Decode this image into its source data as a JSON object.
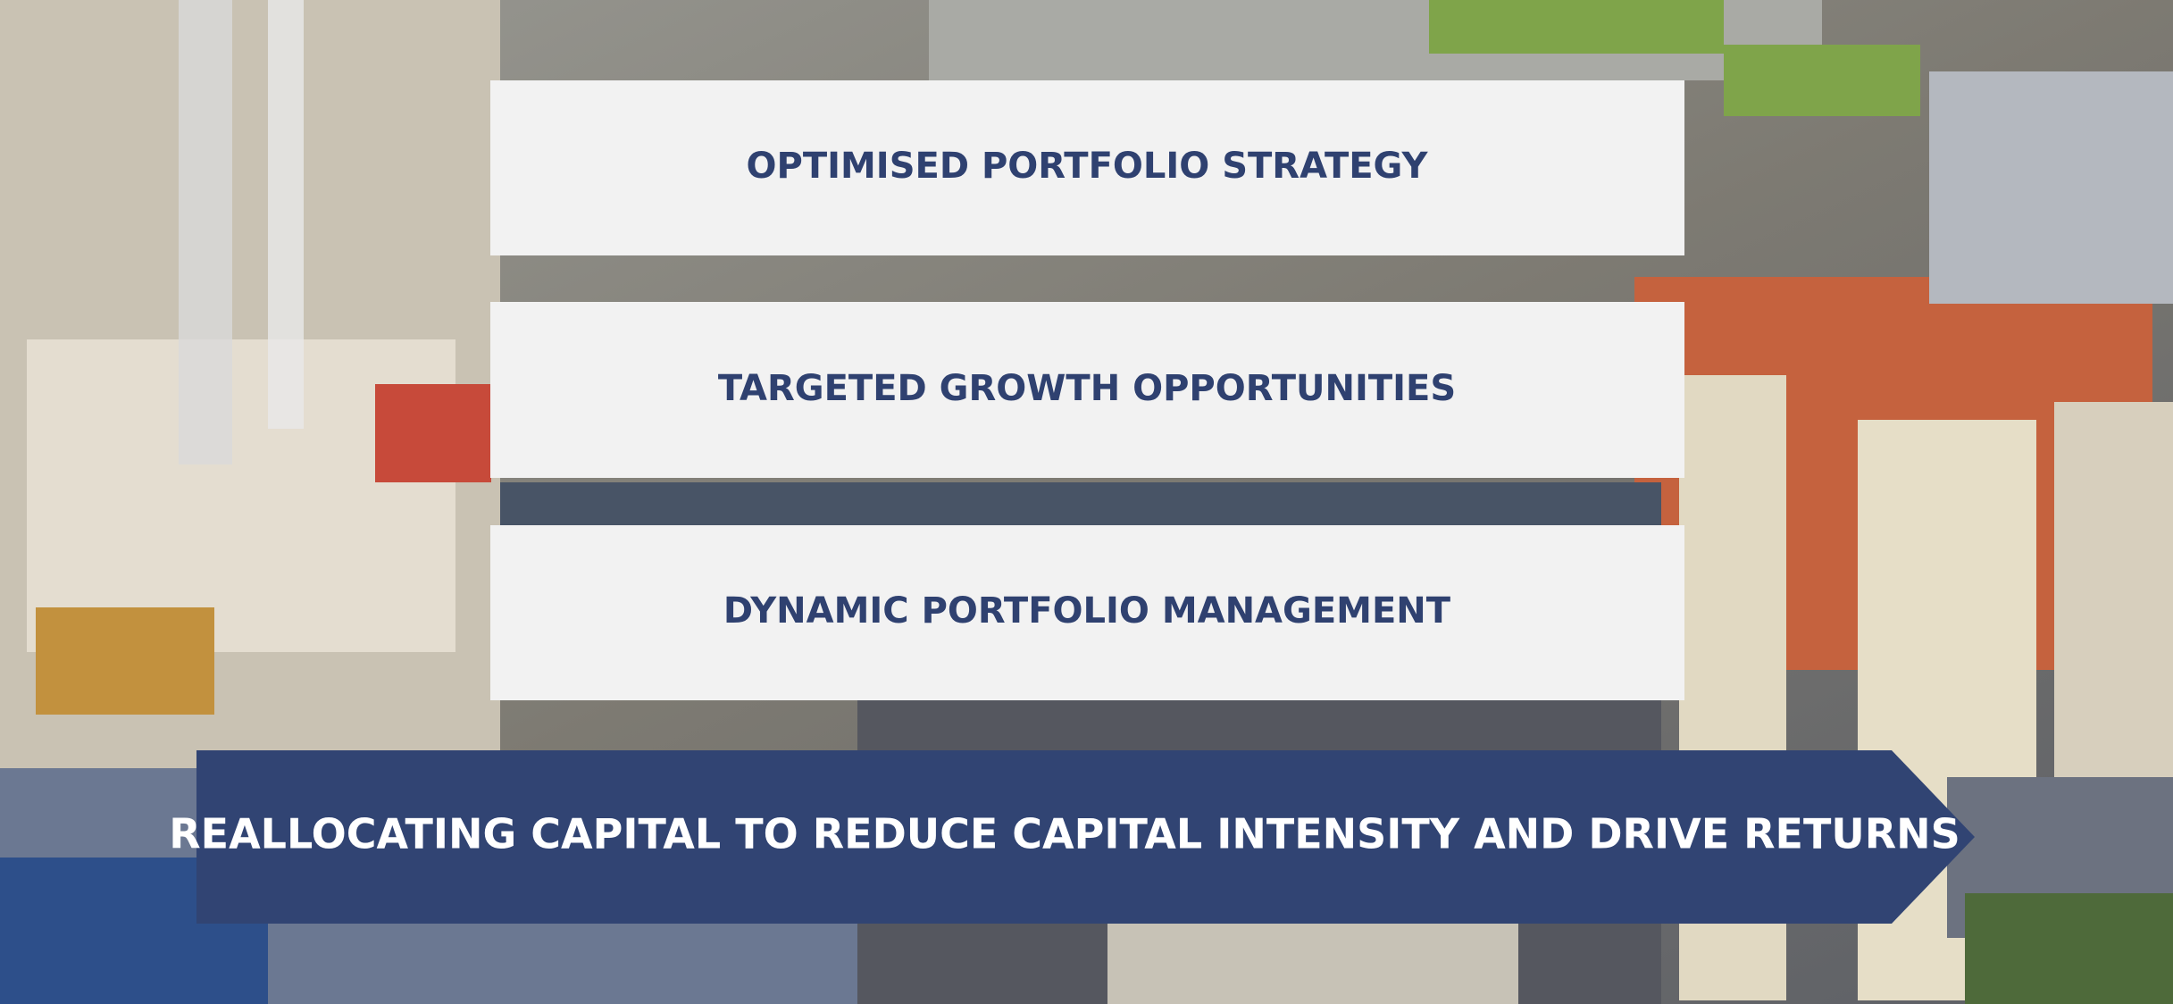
{
  "items": [
    "OPTIMISED PORTFOLIO STRATEGY",
    "TARGETED GROWTH OPPORTUNITIES",
    "DYNAMIC PORTFOLIO MANAGEMENT"
  ],
  "banner": "REALLOCATING CAPITAL TO REDUCE CAPITAL INTENSITY AND DRIVE RETURNS"
}
